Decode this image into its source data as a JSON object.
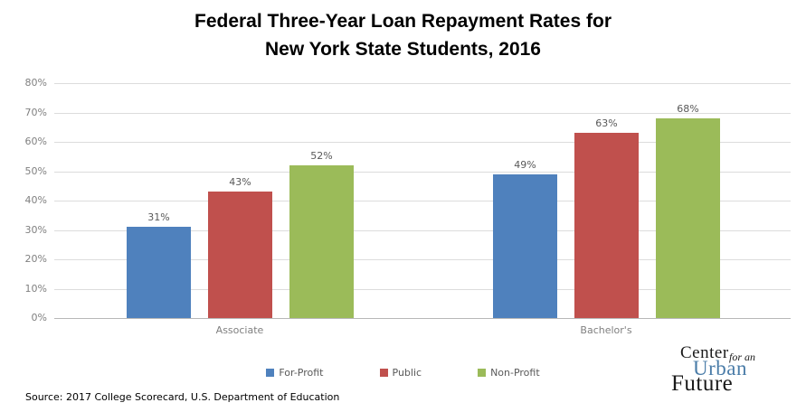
{
  "title": {
    "line1": "Federal Three-Year Loan Repayment Rates for",
    "line2": "New York State Students, 2016"
  },
  "chart_data": {
    "type": "bar",
    "title": "Federal Three-Year Loan Repayment Rates for New York State Students, 2016",
    "categories": [
      "Associate",
      "Bachelor's"
    ],
    "series": [
      {
        "name": "For-Profit",
        "color": "#4F81BD",
        "values": [
          31,
          49
        ]
      },
      {
        "name": "Public",
        "color": "#C0504D",
        "values": [
          43,
          63
        ]
      },
      {
        "name": "Non-Profit",
        "color": "#9BBB59",
        "values": [
          52,
          68
        ]
      }
    ],
    "data_labels": [
      "31%",
      "43%",
      "52%",
      "49%",
      "63%",
      "68%"
    ],
    "ylim": [
      0,
      80
    ],
    "ytick_step": 10,
    "ytick_labels": [
      "0%",
      "10%",
      "20%",
      "30%",
      "40%",
      "50%",
      "60%",
      "70%",
      "80%"
    ],
    "xlabel": "",
    "ylabel": "",
    "grid": true,
    "legend_position": "bottom",
    "colors": {
      "gridline": "#DCDCDC",
      "axis_line": "#B7B7B7",
      "tick_label": "#808080",
      "data_label": "#595959",
      "category_label": "#7F7F7F",
      "legend_label": "#595959"
    }
  },
  "source": {
    "text": "Source: 2017 College Scorecard, U.S. Department of Education"
  },
  "logo": {
    "center": "Center",
    "for_an": "for an",
    "urban": "Urban",
    "future": "Future",
    "urban_color": "#4A7CA8",
    "text_color": "#1A1A1A"
  }
}
